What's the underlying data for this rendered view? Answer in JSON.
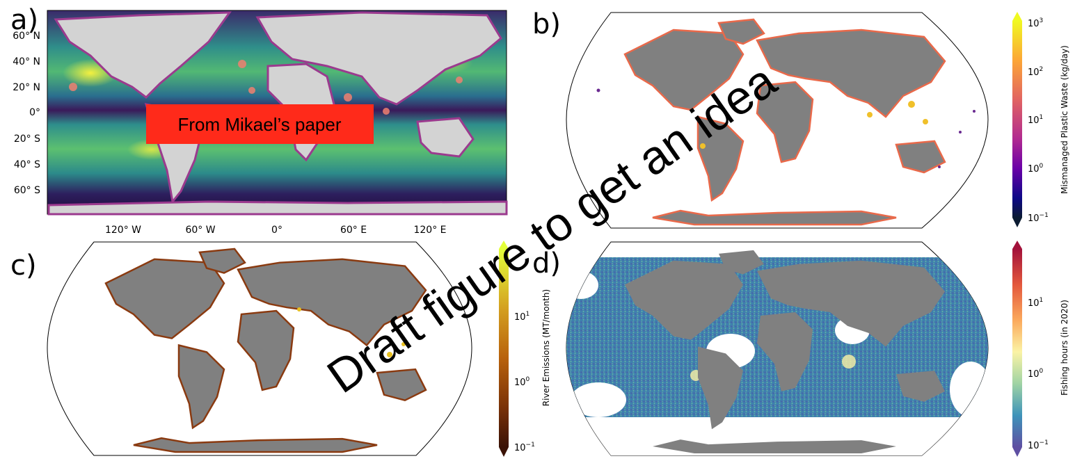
{
  "panels": [
    {
      "letter": "a)",
      "overlay_box_text": "From Mikael’s paper",
      "lat_ticks": [
        "60° N",
        "40° N",
        "20° N",
        "0°",
        "20° S",
        "40° S",
        "60° S"
      ],
      "lon_ticks": [
        "120° W",
        "60° W",
        "0°",
        "60° E",
        "120° E"
      ]
    },
    {
      "letter": "b)"
    },
    {
      "letter": "c)"
    },
    {
      "letter": "d)"
    }
  ],
  "colorbars": {
    "b": {
      "label": "Mismanaged Plastic Waste (kg/day)",
      "ticks": [
        "10",
        "10",
        "10",
        "10",
        "10"
      ],
      "exps": [
        "3",
        "2",
        "1",
        "0",
        "−1"
      ],
      "colormap": "plasma",
      "stops": [
        "#f0f921",
        "#fca636",
        "#e16462",
        "#b12a90",
        "#6a00a8",
        "#0d0887",
        "#0b1b32"
      ]
    },
    "c": {
      "label": "River Emissions (MT/month)",
      "ticks": [
        "10",
        "10",
        "10"
      ],
      "exps": [
        "1",
        "0",
        "−1"
      ],
      "colormap": "afmhot",
      "stops": [
        "#e3ff3a",
        "#d4a020",
        "#b8620c",
        "#7a3208",
        "#3a1206"
      ]
    },
    "d": {
      "label": "Fishing hours (in 2020)",
      "ticks": [
        "10",
        "10",
        "10"
      ],
      "exps": [
        "1",
        "0",
        "−1"
      ],
      "colormap": "Spectral_r",
      "stops": [
        "#a3123b",
        "#e3583d",
        "#fba95c",
        "#fbf3a5",
        "#9fd3a4",
        "#3e93b9",
        "#5e4fa2"
      ]
    }
  },
  "watermark": "Draft figure to get an idea",
  "colors": {
    "land_gray": "#808080",
    "land_light": "#d3d3d3",
    "overlay_red": "#ff2a1a",
    "ocean_teal": "#2e9e8a",
    "ocean_dark": "#3a0f5a"
  }
}
